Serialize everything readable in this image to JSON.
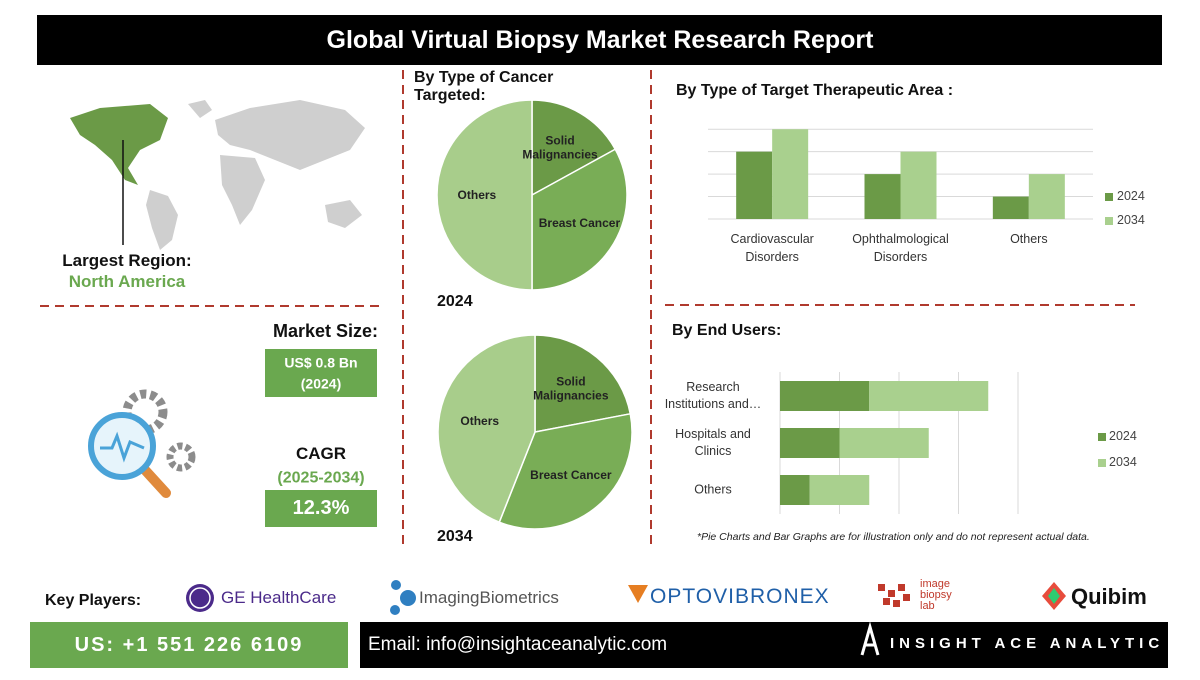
{
  "title": "Global Virtual Biopsy Market Research Report",
  "region": {
    "label": "Largest Region:",
    "value": "North America"
  },
  "market_size": {
    "label": "Market Size:",
    "value": "US$ 0.8 Bn",
    "year": "(2024)"
  },
  "cagr": {
    "label": "CAGR",
    "period": "(2025-2034)",
    "value": "12.3%"
  },
  "cancer_type": {
    "title_lines": [
      "By Type of Cancer",
      "Targeted:"
    ],
    "charts": [
      {
        "type": "pie",
        "year": "2024",
        "categories": [
          "Solid Malignancies",
          "Breast Cancer",
          "Others"
        ],
        "values": [
          17,
          33,
          50
        ],
        "colors": [
          "#6b9a47",
          "#79ad56",
          "#a8cd8b"
        ]
      },
      {
        "type": "pie",
        "year": "2034",
        "categories": [
          "Solid Malignancies",
          "Breast Cancer",
          "Others"
        ],
        "values": [
          22,
          34,
          44
        ],
        "colors": [
          "#6b9a47",
          "#79ad56",
          "#a8cd8b"
        ]
      }
    ]
  },
  "therapeutic_area": {
    "type": "bar",
    "title": "By Type of Target Therapeutic Area :",
    "categories": [
      "Cardiovascular Disorders",
      "Ophthalmological Disorders",
      "Others"
    ],
    "series": [
      {
        "name": "2024",
        "color": "#6b9a47",
        "values": [
          3,
          2,
          1
        ]
      },
      {
        "name": "2034",
        "color": "#a9d08e",
        "values": [
          4,
          3,
          2
        ]
      }
    ],
    "ylim": [
      0,
      4.5
    ],
    "yticks": [
      0,
      1,
      2,
      3,
      4
    ],
    "grid": true,
    "legend": "right"
  },
  "end_users": {
    "type": "bar",
    "orientation": "horizontal",
    "stacked": true,
    "title": "By End Users:",
    "categories": [
      "Research Institutions and…",
      "Hospitals and Clinics",
      "Others"
    ],
    "series": [
      {
        "name": "2024",
        "color": "#6b9a47",
        "values": [
          1.5,
          1,
          0.5
        ]
      },
      {
        "name": "2034",
        "color": "#a9d08e",
        "values": [
          2,
          1.5,
          1
        ]
      }
    ],
    "xlim": [
      0,
      4
    ],
    "xticks": [
      0,
      1,
      2,
      3,
      4
    ],
    "grid": true,
    "legend": "right"
  },
  "note": "*Pie Charts and Bar Graphs are for illustration only and do not represent actual data.",
  "key_players": {
    "label": "Key Players:",
    "companies": [
      "GE HealthCare",
      "ImagingBiometrics",
      "OPTOVIBRONEX",
      "Quibim"
    ],
    "biopsy_lab_lines": [
      "image",
      "biopsy",
      "lab"
    ]
  },
  "contact": {
    "phone": "US: +1 551 226 6109",
    "email": "Email: info@insightaceanalytic.com",
    "brand": "INSIGHT ACE ANALYTIC"
  }
}
